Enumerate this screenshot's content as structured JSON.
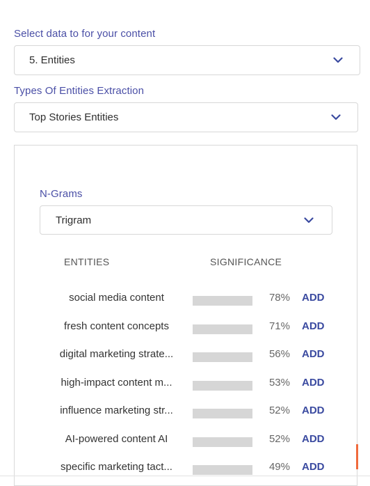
{
  "data_select": {
    "label": "Select data to for your content",
    "value": "5. Entities"
  },
  "types_select": {
    "label": "Types Of Entities Extraction",
    "value": "Top Stories Entities"
  },
  "ngrams_select": {
    "label": "N-Grams",
    "value": "Trigram"
  },
  "table": {
    "headers": {
      "entities": "ENTITIES",
      "significance": "SIGNIFICANCE"
    },
    "add_label": "ADD",
    "rows": [
      {
        "entity": "social media content",
        "significance": 78,
        "pct_label": "78%"
      },
      {
        "entity": "fresh content concepts",
        "significance": 71,
        "pct_label": "71%"
      },
      {
        "entity": "digital marketing strate...",
        "significance": 56,
        "pct_label": "56%"
      },
      {
        "entity": "high-impact content m...",
        "significance": 53,
        "pct_label": "53%"
      },
      {
        "entity": "influence marketing str...",
        "significance": 52,
        "pct_label": "52%"
      },
      {
        "entity": "AI-powered content AI",
        "significance": 52,
        "pct_label": "52%"
      },
      {
        "entity": "specific marketing tact...",
        "significance": 49,
        "pct_label": "49%"
      }
    ]
  },
  "colors": {
    "accent": "#37489a",
    "label": "#4a4fa6",
    "bar_track": "#d6d6d6",
    "scroll_accent": "#f06a3c"
  },
  "icons": {
    "dropdown": "chevron-down-icon"
  }
}
